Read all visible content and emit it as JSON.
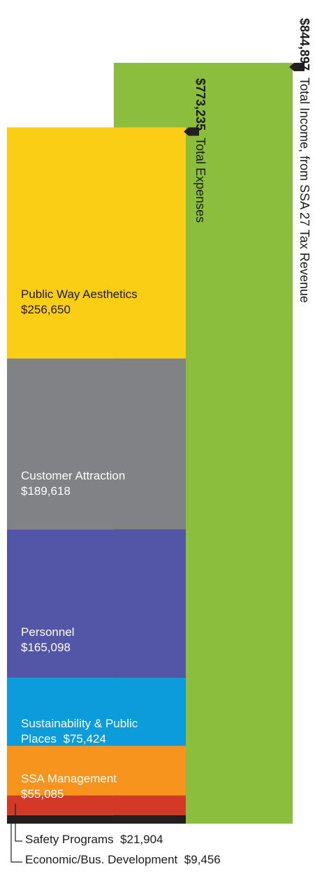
{
  "chart_data": {
    "type": "bar",
    "income": {
      "value": 844897,
      "amount_label": "$844,897",
      "label": "Total Income, from SSA 27 Tax Revenue",
      "color": "#8BBE3C"
    },
    "expenses_total": {
      "value": 773235,
      "amount_label": "$773,235",
      "label": "Total Expenses"
    },
    "segments": [
      {
        "name": "Public Way Aesthetics",
        "value": 256650,
        "amount_label": "$256,650",
        "color": "#FBCE16",
        "text_dark": true
      },
      {
        "name": "Customer Attraction",
        "value": 189618,
        "amount_label": "$189,618",
        "color": "#808285",
        "text_dark": false
      },
      {
        "name": "Personnel",
        "value": 165098,
        "amount_label": "$165,098",
        "color": "#5356A7",
        "text_dark": false
      },
      {
        "name": "Sustainability & Public",
        "name2": "Places",
        "value": 75424,
        "amount_label": "$75,424",
        "color": "#0C9CDC",
        "text_dark": false
      },
      {
        "name": "SSA Management",
        "value": 55085,
        "amount_label": "$55,085",
        "color": "#F7941D",
        "text_dark": false
      },
      {
        "name": "Safety Programs",
        "value": 21904,
        "amount_label": "$21,904",
        "color": "#D23A27",
        "text_dark": false
      },
      {
        "name": "Economic/Bus. Development",
        "value": 9456,
        "amount_label": "$9,456",
        "color": "#231F20",
        "text_dark": false
      }
    ]
  }
}
